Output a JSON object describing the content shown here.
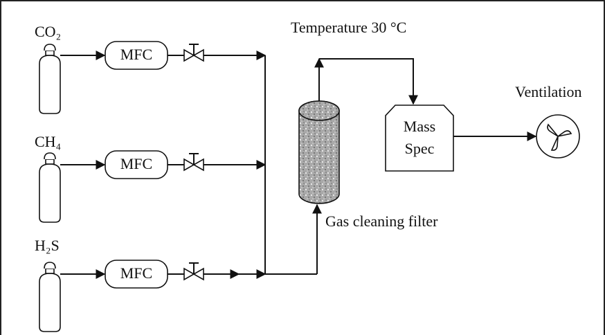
{
  "gases": [
    {
      "label": "CO₂",
      "controller": "MFC"
    },
    {
      "label": "CH₄",
      "controller": "MFC"
    },
    {
      "label": "H₂S",
      "controller": "MFC"
    }
  ],
  "temperature": "Temperature 30 °C",
  "filter": {
    "label": "Gas cleaning filter"
  },
  "mass_spec": {
    "lines": [
      "Mass",
      "Spec"
    ]
  },
  "ventilation": "Ventilation"
}
